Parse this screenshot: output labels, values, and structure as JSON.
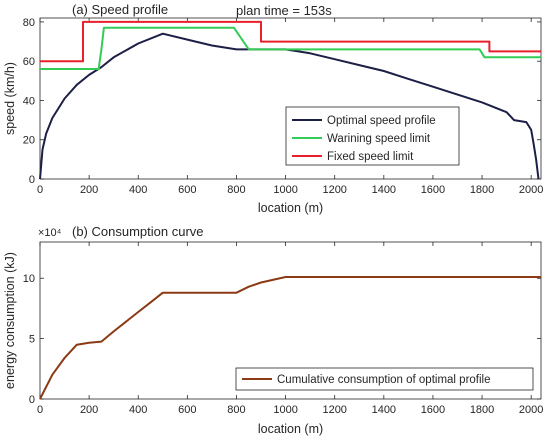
{
  "chart_data": [
    {
      "type": "line",
      "title": "(a) Speed profile",
      "annotation": "plan time = 153s",
      "xlabel": "location (m)",
      "ylabel": "speed (km/h)",
      "xlim": [
        0,
        2040
      ],
      "ylim": [
        0,
        82
      ],
      "x_ticks": [
        "0",
        "200",
        "400",
        "600",
        "800",
        "1000",
        "1200",
        "1400",
        "1600",
        "1800",
        "2000"
      ],
      "y_ticks": [
        "0",
        "20",
        "40",
        "60",
        "80"
      ],
      "grid": false,
      "legend_position": "lower-right",
      "series": [
        {
          "name": "Optimal speed profile",
          "color": "#1c1f46",
          "x": [
            0,
            10,
            25,
            50,
            100,
            150,
            200,
            250,
            300,
            400,
            500,
            600,
            700,
            800,
            850,
            900,
            1000,
            1100,
            1200,
            1300,
            1400,
            1500,
            1600,
            1700,
            1800,
            1900,
            1930,
            1980,
            2000,
            2010,
            2020,
            2030
          ],
          "y": [
            0,
            15,
            23,
            31,
            41,
            48,
            53,
            57,
            62,
            69,
            74,
            71,
            68,
            66,
            66,
            66,
            66,
            64,
            61,
            58,
            55,
            51,
            47,
            43,
            39,
            34,
            30,
            29,
            25,
            18,
            10,
            0
          ]
        },
        {
          "name": "Warining speed limit",
          "color": "#33cc55",
          "x": [
            0,
            240,
            240,
            250,
            260,
            790,
            850,
            850,
            1790,
            1800,
            1810,
            2040
          ],
          "y": [
            56,
            56,
            57,
            66,
            77,
            77,
            66,
            66,
            66,
            64,
            62,
            62
          ]
        },
        {
          "name": "Fixed speed limit",
          "color": "#e8202a",
          "x": [
            0,
            175,
            175,
            900,
            900,
            1830,
            1830,
            2040
          ],
          "y": [
            60,
            60,
            80,
            80,
            70,
            70,
            65,
            65
          ]
        }
      ]
    },
    {
      "type": "line",
      "title": "(b) Consumption curve",
      "exponent_label": "×10⁴",
      "xlabel": "location (m)",
      "ylabel": "energy consumption (kJ)",
      "xlim": [
        0,
        2040
      ],
      "ylim": [
        0,
        130000
      ],
      "x_ticks": [
        "0",
        "200",
        "400",
        "600",
        "800",
        "1000",
        "1200",
        "1400",
        "1600",
        "1800",
        "2000"
      ],
      "y_ticks": [
        "0",
        "5",
        "10"
      ],
      "grid": false,
      "legend_position": "lower-right",
      "series": [
        {
          "name": "Cumulative consumption of optimal profile",
          "color": "#8b3a14",
          "x": [
            0,
            50,
            100,
            150,
            200,
            250,
            300,
            350,
            400,
            450,
            500,
            550,
            600,
            700,
            800,
            850,
            900,
            1000,
            1100,
            1500,
            2000,
            2040
          ],
          "y": [
            0,
            20000,
            34000,
            45000,
            46500,
            47500,
            56000,
            64000,
            72000,
            80000,
            88000,
            88000,
            88000,
            88000,
            88000,
            93000,
            96500,
            101000,
            101000,
            101000,
            101000,
            101000
          ]
        }
      ]
    }
  ]
}
